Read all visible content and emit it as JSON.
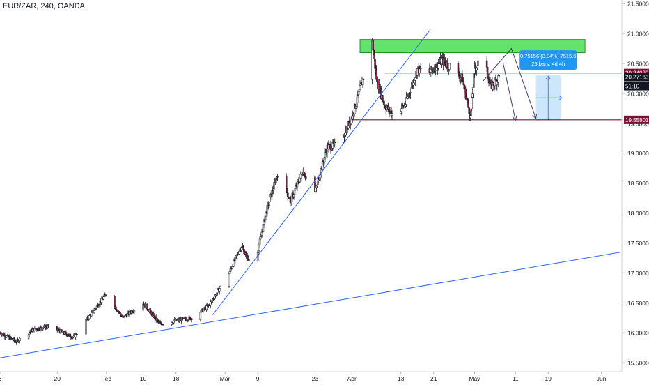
{
  "header": {
    "symbol_label": "EUR/ZAR, 240, OANDA"
  },
  "colors": {
    "up": "#ffffff",
    "down": "#8f1d3a",
    "wick": "#131722",
    "trendline": "#2962ff",
    "zone": "#22d52e",
    "level": "#7b1236",
    "arrow": "#3c3c6e",
    "measure_box": "#bbdefb",
    "measure_label_bg": "#2196f3"
  },
  "chart_data": {
    "type": "candlestick",
    "title": "EUR/ZAR, 240, OANDA",
    "y_axis": {
      "ticks": [
        "15.50000",
        "16.00000",
        "16.50000",
        "17.00000",
        "17.50000",
        "18.00000",
        "18.50000",
        "19.00000",
        "19.50000",
        "20.00000",
        "20.50000",
        "21.00000",
        "21.50000"
      ],
      "tick_values": [
        15.5,
        16.0,
        16.5,
        17.0,
        17.5,
        18.0,
        18.5,
        19.0,
        19.5,
        20.0,
        20.5,
        21.0,
        21.5
      ],
      "range": [
        15.35,
        21.56
      ]
    },
    "x_axis": {
      "ticks": [
        "6",
        "20",
        "Feb",
        "10",
        "18",
        "Mar",
        "9",
        "23",
        "Apr",
        "13",
        "21",
        "May",
        "11",
        "19",
        "Jun"
      ],
      "start": "2020-01-06",
      "end": "2020-06-06"
    },
    "price_labels": [
      {
        "text": "20.34089",
        "value": 20.34089,
        "style": "level"
      },
      {
        "text": "20.27163",
        "value": 20.27163,
        "style": "current"
      },
      {
        "text": "51:10",
        "value": 20.12,
        "style": "countdown"
      },
      {
        "text": "19.55801",
        "value": 19.55801,
        "style": "level"
      }
    ],
    "measure": {
      "line1": "0.75156 (3.84%) 7515.6",
      "line2": "25 bars, 4d 4h"
    },
    "anchors": [
      [
        "2020-01-06",
        16.0
      ],
      [
        "2020-01-10",
        15.85
      ],
      [
        "2020-01-14",
        16.05
      ],
      [
        "2020-01-17",
        16.1
      ],
      [
        "2020-01-20",
        16.05
      ],
      [
        "2020-01-24",
        15.92
      ],
      [
        "2020-01-27",
        16.2
      ],
      [
        "2020-02-01",
        16.65
      ],
      [
        "2020-02-05",
        16.25
      ],
      [
        "2020-02-10",
        16.5
      ],
      [
        "2020-02-14",
        16.15
      ],
      [
        "2020-02-18",
        16.2
      ],
      [
        "2020-02-22",
        16.25
      ],
      [
        "2020-02-26",
        16.45
      ],
      [
        "2020-03-02",
        17.0
      ],
      [
        "2020-03-05",
        17.45
      ],
      [
        "2020-03-08",
        17.05
      ],
      [
        "2020-03-11",
        18.0
      ],
      [
        "2020-03-14",
        18.7
      ],
      [
        "2020-03-17",
        18.2
      ],
      [
        "2020-03-20",
        18.7
      ],
      [
        "2020-03-23",
        18.35
      ],
      [
        "2020-03-26",
        19.1
      ],
      [
        "2020-03-29",
        19.15
      ],
      [
        "2020-04-01",
        19.6
      ],
      [
        "2020-04-04",
        20.3
      ],
      [
        "2020-04-06",
        20.85
      ],
      [
        "2020-04-07",
        20.25
      ],
      [
        "2020-04-09",
        19.8
      ],
      [
        "2020-04-11",
        19.65
      ],
      [
        "2020-04-14",
        19.8
      ],
      [
        "2020-04-17",
        20.4
      ],
      [
        "2020-04-20",
        20.35
      ],
      [
        "2020-04-23",
        20.55
      ],
      [
        "2020-04-25",
        20.45
      ],
      [
        "2020-04-28",
        20.25
      ],
      [
        "2020-04-30",
        19.6
      ],
      [
        "2020-05-01",
        20.4
      ],
      [
        "2020-05-03",
        20.65
      ],
      [
        "2020-05-05",
        20.1
      ],
      [
        "2020-05-07",
        20.27163
      ]
    ]
  },
  "drawings": {
    "trendlines": [
      {
        "name": "long-trendline",
        "from": [
          "2020-01-06",
          15.58
        ],
        "to": [
          "2020-06-06",
          17.35
        ]
      },
      {
        "name": "steep-trendline",
        "from": [
          "2020-02-27",
          16.3
        ],
        "to": [
          "2020-04-20",
          21.05
        ]
      }
    ],
    "zone": {
      "from": [
        "2020-04-03",
        20.68
      ],
      "to": [
        "2020-05-28",
        20.9
      ]
    },
    "level_lines": [
      {
        "value": 20.34089,
        "from": "2020-04-09"
      },
      {
        "value": 19.55801,
        "from": "2020-04-01"
      }
    ],
    "arrows": [
      {
        "points": [
          [
            "2020-05-08",
            20.5
          ],
          [
            "2020-05-11",
            19.55
          ]
        ]
      },
      {
        "points": [
          [
            "2020-05-03",
            20.2
          ],
          [
            "2020-05-10",
            20.75
          ],
          [
            "2020-05-16",
            19.58
          ]
        ]
      }
    ],
    "measure_box": {
      "from": [
        "2020-05-16",
        19.55
      ],
      "to": [
        "2020-05-22",
        20.3
      ]
    }
  }
}
